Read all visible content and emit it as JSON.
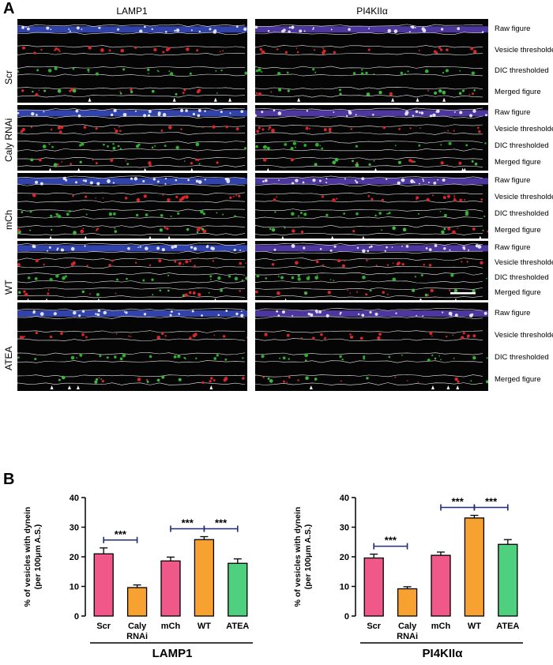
{
  "panel_a": {
    "letter": "A",
    "columns": [
      "LAMP1",
      "PI4KIIα"
    ],
    "conditions": [
      "Scr",
      "Caly RNAi",
      "mCh",
      "WT",
      "ATEA"
    ],
    "image_rows": [
      "Raw figure",
      "Vesicle thresholded",
      "DIC thresholded",
      "Merged figure"
    ]
  },
  "panel_b": {
    "letter": "B",
    "significance": "***"
  },
  "chart_data": [
    {
      "type": "bar",
      "group_label": "LAMP1",
      "ylabel": "% of vesicles with dynein (per 100μm A.S.)",
      "categories": [
        "Scr",
        "Caly RNAi",
        "mCh",
        "WT",
        "ATEA"
      ],
      "values": [
        21,
        9.6,
        18.6,
        25.8,
        17.8
      ],
      "errors": [
        2.0,
        0.9,
        1.3,
        1.0,
        1.5
      ],
      "ylim": [
        0,
        40
      ],
      "yticks": [
        0,
        10,
        20,
        30,
        40
      ],
      "colors": [
        "#f0588a",
        "#f7a130",
        "#f0588a",
        "#f7a130",
        "#4fd07e"
      ],
      "comparisons": [
        [
          0,
          1
        ],
        [
          2,
          3
        ],
        [
          3,
          4
        ]
      ]
    },
    {
      "type": "bar",
      "group_label": "PI4KIIα",
      "ylabel": "% of vesicles with dynein (per 100μm A.S.)",
      "categories": [
        "Scr",
        "Caly RNAi",
        "mCh",
        "WT",
        "ATEA"
      ],
      "values": [
        19.6,
        9.2,
        20.5,
        33.1,
        24.2
      ],
      "errors": [
        1.3,
        0.7,
        1.1,
        0.9,
        1.6
      ],
      "ylim": [
        0,
        40
      ],
      "yticks": [
        0,
        10,
        20,
        30,
        40
      ],
      "colors": [
        "#f0588a",
        "#f7a130",
        "#f0588a",
        "#f7a130",
        "#4fd07e"
      ],
      "comparisons": [
        [
          0,
          1
        ],
        [
          2,
          3
        ],
        [
          3,
          4
        ]
      ]
    }
  ]
}
